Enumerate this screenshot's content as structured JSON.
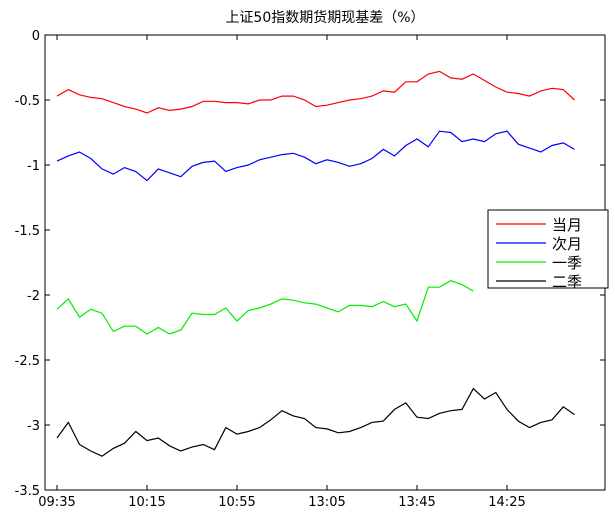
{
  "chart_data": {
    "type": "line",
    "title": "上证50指数期货期现基差（%）",
    "xlabel": "",
    "ylabel": "",
    "ylim": [
      -3.5,
      0
    ],
    "yticks": [
      0,
      -0.5,
      -1,
      -1.5,
      -2,
      -2.5,
      -3,
      -3.5
    ],
    "ytick_labels": [
      "0",
      "-0.5",
      "-1",
      "-1.5",
      "-2",
      "-2.5",
      "-3",
      "-3.5"
    ],
    "xtick_labels": [
      "09:35",
      "10:15",
      "10:55",
      "13:05",
      "13:45",
      "14:25"
    ],
    "grid": false,
    "legend_position": "right",
    "x_points": 49,
    "series": [
      {
        "name": "当月",
        "color": "#ff0000",
        "values": [
          -0.47,
          -0.42,
          -0.46,
          -0.48,
          -0.49,
          -0.52,
          -0.55,
          -0.57,
          -0.6,
          -0.56,
          -0.58,
          -0.57,
          -0.55,
          -0.51,
          -0.51,
          -0.52,
          -0.52,
          -0.53,
          -0.5,
          -0.5,
          -0.47,
          -0.47,
          -0.5,
          -0.55,
          -0.54,
          -0.52,
          -0.5,
          -0.49,
          -0.47,
          -0.43,
          -0.44,
          -0.36,
          -0.36,
          -0.3,
          -0.28,
          -0.33,
          -0.34,
          -0.3,
          -0.35,
          -0.4,
          -0.44,
          -0.45,
          -0.47,
          -0.43,
          -0.41,
          -0.42,
          -0.5
        ]
      },
      {
        "name": "次月",
        "color": "#0000ff",
        "values": [
          -0.97,
          -0.93,
          -0.9,
          -0.95,
          -1.03,
          -1.07,
          -1.02,
          -1.05,
          -1.12,
          -1.03,
          -1.06,
          -1.09,
          -1.01,
          -0.98,
          -0.97,
          -1.05,
          -1.02,
          -1.0,
          -0.96,
          -0.94,
          -0.92,
          -0.91,
          -0.94,
          -0.99,
          -0.96,
          -0.98,
          -1.01,
          -0.99,
          -0.95,
          -0.88,
          -0.93,
          -0.85,
          -0.8,
          -0.86,
          -0.74,
          -0.75,
          -0.82,
          -0.8,
          -0.82,
          -0.76,
          -0.74,
          -0.84,
          -0.87,
          -0.9,
          -0.85,
          -0.83,
          -0.88
        ]
      },
      {
        "name": "一季",
        "color": "#00ee00",
        "values": [
          -2.11,
          -2.03,
          -2.17,
          -2.11,
          -2.14,
          -2.28,
          -2.24,
          -2.24,
          -2.3,
          -2.25,
          -2.3,
          -2.27,
          -2.14,
          -2.15,
          -2.15,
          -2.1,
          -2.2,
          -2.12,
          -2.1,
          -2.07,
          -2.03,
          -2.04,
          -2.06,
          -2.07,
          -2.1,
          -2.13,
          -2.08,
          -2.08,
          -2.09,
          -2.05,
          -2.09,
          -2.07,
          -2.2,
          -1.94,
          -1.94,
          -1.89,
          -1.92,
          -1.97
        ]
      },
      {
        "name": "二季",
        "color": "#000000",
        "values": [
          -3.1,
          -2.98,
          -3.15,
          -3.2,
          -3.24,
          -3.18,
          -3.14,
          -3.05,
          -3.12,
          -3.1,
          -3.16,
          -3.2,
          -3.17,
          -3.15,
          -3.19,
          -3.02,
          -3.07,
          -3.05,
          -3.02,
          -2.96,
          -2.89,
          -2.93,
          -2.95,
          -3.02,
          -3.03,
          -3.06,
          -3.05,
          -3.02,
          -2.98,
          -2.97,
          -2.88,
          -2.83,
          -2.94,
          -2.95,
          -2.91,
          -2.89,
          -2.88,
          -2.72,
          -2.8,
          -2.75,
          -2.88,
          -2.97,
          -3.02,
          -2.98,
          -2.96,
          -2.86,
          -2.92
        ]
      }
    ]
  }
}
